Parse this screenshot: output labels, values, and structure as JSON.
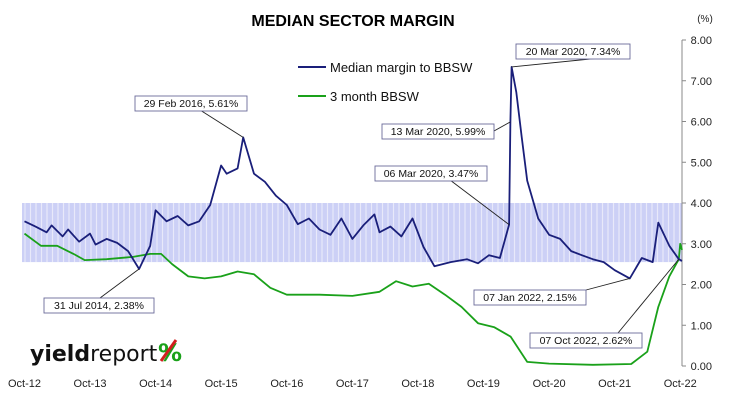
{
  "chart_data": {
    "type": "line",
    "title": "MEDIAN SECTOR MARGIN",
    "unit_label": "(%)",
    "ylim": [
      0,
      8
    ],
    "y_ticks": [
      "0.00",
      "1.00",
      "2.00",
      "3.00",
      "4.00",
      "5.00",
      "6.00",
      "7.00",
      "8.00"
    ],
    "x_ticks": [
      "Oct-12",
      "Oct-13",
      "Oct-14",
      "Oct-15",
      "Oct-16",
      "Oct-17",
      "Oct-18",
      "Oct-19",
      "Oct-20",
      "Oct-21",
      "Oct-22"
    ],
    "x_tick_dates": [
      "2012-10",
      "2013-10",
      "2014-10",
      "2015-10",
      "2016-10",
      "2017-10",
      "2018-10",
      "2019-10",
      "2020-10",
      "2021-10",
      "2022-10"
    ],
    "grid": false,
    "legend_position": "top-center",
    "band": {
      "low": 2.55,
      "high": 4.0,
      "color": "#aab0f0"
    },
    "series": [
      {
        "name": "Median margin to BBSW",
        "color": "#1a1f7a",
        "points": [
          [
            "2012-10",
            3.55
          ],
          [
            "2012-12",
            3.42
          ],
          [
            "2013-02",
            3.28
          ],
          [
            "2013-03",
            3.45
          ],
          [
            "2013-05",
            3.18
          ],
          [
            "2013-06",
            3.35
          ],
          [
            "2013-08",
            3.05
          ],
          [
            "2013-10",
            3.25
          ],
          [
            "2013-11",
            2.98
          ],
          [
            "2014-01",
            3.12
          ],
          [
            "2014-03",
            3.02
          ],
          [
            "2014-05",
            2.82
          ],
          [
            "2014-07",
            2.38
          ],
          [
            "2014-09",
            2.95
          ],
          [
            "2014-10",
            3.82
          ],
          [
            "2014-12",
            3.55
          ],
          [
            "2015-02",
            3.68
          ],
          [
            "2015-04",
            3.45
          ],
          [
            "2015-06",
            3.55
          ],
          [
            "2015-08",
            3.95
          ],
          [
            "2015-10",
            4.92
          ],
          [
            "2015-11",
            4.72
          ],
          [
            "2016-01",
            4.85
          ],
          [
            "2016-02",
            5.61
          ],
          [
            "2016-04",
            4.72
          ],
          [
            "2016-06",
            4.52
          ],
          [
            "2016-08",
            4.18
          ],
          [
            "2016-10",
            3.95
          ],
          [
            "2016-12",
            3.48
          ],
          [
            "2017-02",
            3.62
          ],
          [
            "2017-04",
            3.35
          ],
          [
            "2017-06",
            3.22
          ],
          [
            "2017-08",
            3.62
          ],
          [
            "2017-10",
            3.12
          ],
          [
            "2017-12",
            3.45
          ],
          [
            "2018-02",
            3.72
          ],
          [
            "2018-03",
            3.28
          ],
          [
            "2018-05",
            3.42
          ],
          [
            "2018-07",
            3.18
          ],
          [
            "2018-09",
            3.62
          ],
          [
            "2018-11",
            2.92
          ],
          [
            "2019-01",
            2.45
          ],
          [
            "2019-04",
            2.55
          ],
          [
            "2019-07",
            2.62
          ],
          [
            "2019-09",
            2.52
          ],
          [
            "2019-11",
            2.72
          ],
          [
            "2020-01",
            2.65
          ],
          [
            "2020-03-06",
            3.47
          ],
          [
            "2020-03-13",
            5.99
          ],
          [
            "2020-03-20",
            7.34
          ],
          [
            "2020-04",
            6.72
          ],
          [
            "2020-05",
            5.62
          ],
          [
            "2020-06",
            4.55
          ],
          [
            "2020-08",
            3.62
          ],
          [
            "2020-10",
            3.22
          ],
          [
            "2020-12",
            3.12
          ],
          [
            "2021-02",
            2.82
          ],
          [
            "2021-04",
            2.72
          ],
          [
            "2021-06",
            2.62
          ],
          [
            "2021-08",
            2.55
          ],
          [
            "2021-10",
            2.35
          ],
          [
            "2022-01-07",
            2.15
          ],
          [
            "2022-03",
            2.65
          ],
          [
            "2022-05",
            2.55
          ],
          [
            "2022-06",
            3.52
          ],
          [
            "2022-08",
            2.95
          ],
          [
            "2022-10-07",
            2.62
          ],
          [
            "2022-10-25",
            2.58
          ]
        ]
      },
      {
        "name": "3 month BBSW",
        "color": "#1aa11a",
        "points": [
          [
            "2012-10",
            3.25
          ],
          [
            "2013-01",
            2.95
          ],
          [
            "2013-04",
            2.95
          ],
          [
            "2013-07",
            2.75
          ],
          [
            "2013-09",
            2.6
          ],
          [
            "2014-01",
            2.62
          ],
          [
            "2014-06",
            2.68
          ],
          [
            "2014-09",
            2.75
          ],
          [
            "2014-11",
            2.75
          ],
          [
            "2015-01",
            2.5
          ],
          [
            "2015-04",
            2.2
          ],
          [
            "2015-07",
            2.15
          ],
          [
            "2015-10",
            2.2
          ],
          [
            "2016-01",
            2.32
          ],
          [
            "2016-04",
            2.25
          ],
          [
            "2016-07",
            1.92
          ],
          [
            "2016-10",
            1.75
          ],
          [
            "2017-04",
            1.75
          ],
          [
            "2017-10",
            1.72
          ],
          [
            "2018-03",
            1.82
          ],
          [
            "2018-06",
            2.08
          ],
          [
            "2018-09",
            1.95
          ],
          [
            "2018-12",
            2.02
          ],
          [
            "2019-03",
            1.75
          ],
          [
            "2019-06",
            1.45
          ],
          [
            "2019-09",
            1.05
          ],
          [
            "2019-12",
            0.95
          ],
          [
            "2020-03",
            0.72
          ],
          [
            "2020-06",
            0.1
          ],
          [
            "2020-10",
            0.06
          ],
          [
            "2021-06",
            0.03
          ],
          [
            "2022-01",
            0.05
          ],
          [
            "2022-04",
            0.35
          ],
          [
            "2022-06",
            1.45
          ],
          [
            "2022-08",
            2.2
          ],
          [
            "2022-10-07",
            2.62
          ],
          [
            "2022-10-15",
            3.0
          ],
          [
            "2022-10-25",
            2.85
          ]
        ]
      }
    ],
    "annotations": [
      {
        "text": "20 Mar 2020,  7.34%",
        "date": "2020-03-20",
        "value": 7.34
      },
      {
        "text": "29 Feb 2016,  5.61%",
        "date": "2016-02",
        "value": 5.61
      },
      {
        "text": "13 Mar 2020,  5.99%",
        "date": "2020-03-13",
        "value": 5.99
      },
      {
        "text": "06 Mar 2020,  3.47%",
        "date": "2020-03-06",
        "value": 3.47
      },
      {
        "text": "31 Jul 2014,  2.38%",
        "date": "2014-07",
        "value": 2.38
      },
      {
        "text": "07 Jan 2022,  2.15%",
        "date": "2022-01-07",
        "value": 2.15
      },
      {
        "text": "07 Oct 2022,  2.62%",
        "date": "2022-10-07",
        "value": 2.62
      }
    ]
  },
  "logo": {
    "bold": "yield",
    "light": "report",
    "symbol": "%"
  }
}
